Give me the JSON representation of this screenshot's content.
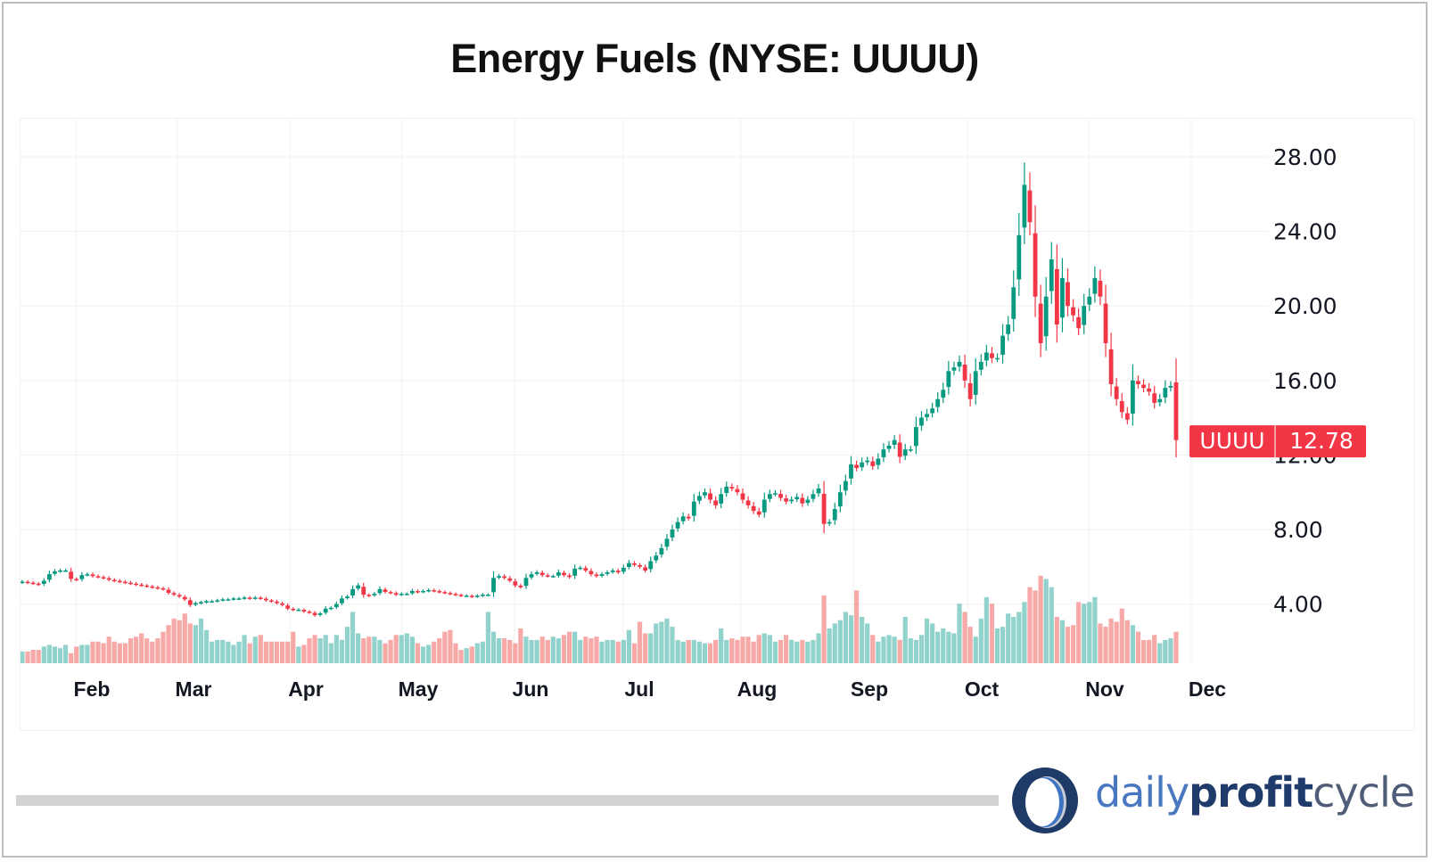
{
  "title": "Energy Fuels (NYSE: UUUU)",
  "price_tag": {
    "symbol": "UUUU",
    "value": "12.78",
    "color": "#f23645"
  },
  "logo": {
    "part1": "daily",
    "part2": "profit",
    "part3": "cycle"
  },
  "colors": {
    "up": "#089981",
    "down": "#f23645",
    "vol_up": "#92d2cc",
    "vol_down": "#f7a9a7",
    "grid": "#f0f0f0",
    "axis_text": "#131722"
  },
  "chart_data": {
    "type": "candlestick",
    "title": "Energy Fuels (NYSE: UUUU)",
    "xlabel": "",
    "ylabel": "",
    "ylim": [
      0,
      30
    ],
    "y_ticks": [
      "4.00",
      "8.00",
      "12.00",
      "16.00",
      "20.00",
      "24.00",
      "28.00"
    ],
    "x_ticks": [
      "Feb",
      "Mar",
      "Apr",
      "May",
      "Jun",
      "Jul",
      "Aug",
      "Sep",
      "Oct",
      "Nov",
      "Dec"
    ],
    "grid": true,
    "last_price": 12.78,
    "closes": [
      5.2,
      5.15,
      5.1,
      5.05,
      5.25,
      5.6,
      5.75,
      5.8,
      5.8,
      5.35,
      5.3,
      5.55,
      5.6,
      5.5,
      5.45,
      5.4,
      5.3,
      5.25,
      5.2,
      5.15,
      5.1,
      5.05,
      5.0,
      4.95,
      4.9,
      4.85,
      4.8,
      4.6,
      4.5,
      4.4,
      4.25,
      3.95,
      4.05,
      4.1,
      4.15,
      4.15,
      4.2,
      4.25,
      4.25,
      4.3,
      4.3,
      4.35,
      4.3,
      4.35,
      4.3,
      4.2,
      4.15,
      4.05,
      3.95,
      3.75,
      3.7,
      3.7,
      3.6,
      3.55,
      3.4,
      3.5,
      3.75,
      3.8,
      4.0,
      4.3,
      4.4,
      4.8,
      5.0,
      4.5,
      4.45,
      4.55,
      4.8,
      4.65,
      4.6,
      4.5,
      4.55,
      4.55,
      4.7,
      4.65,
      4.7,
      4.75,
      4.7,
      4.65,
      4.6,
      4.55,
      4.5,
      4.45,
      4.45,
      4.4,
      4.45,
      4.5,
      4.5,
      5.4,
      5.5,
      5.4,
      5.25,
      5.0,
      4.9,
      5.4,
      5.6,
      5.7,
      5.55,
      5.5,
      5.5,
      5.7,
      5.55,
      5.45,
      5.9,
      5.95,
      5.8,
      5.6,
      5.5,
      5.6,
      5.7,
      5.8,
      5.7,
      5.95,
      6.2,
      6.1,
      6.0,
      5.8,
      6.3,
      6.6,
      7.0,
      7.5,
      8.0,
      8.4,
      8.7,
      8.6,
      9.5,
      9.8,
      10.0,
      9.6,
      9.3,
      9.9,
      10.3,
      10.2,
      10.0,
      9.6,
      9.3,
      9.0,
      8.8,
      9.6,
      9.9,
      9.95,
      9.7,
      9.5,
      9.6,
      9.75,
      9.4,
      9.6,
      9.9,
      10.2,
      8.3,
      8.4,
      9.1,
      10.0,
      10.6,
      11.5,
      11.3,
      11.6,
      11.7,
      11.4,
      11.8,
      12.3,
      12.5,
      12.8,
      11.9,
      12.3,
      12.3,
      13.5,
      14.0,
      14.2,
      14.5,
      15.0,
      15.5,
      16.5,
      16.7,
      17.0,
      16.0,
      15.0,
      16.5,
      17.0,
      17.5,
      17.2,
      17.2,
      18.4,
      19.0,
      21.0,
      23.8,
      26.5,
      24.5,
      20.5,
      18.0,
      20.5,
      22.5,
      19.0,
      21.5,
      20.0,
      19.5,
      18.8,
      20.0,
      20.5,
      21.5,
      20.5,
      18.0,
      15.8,
      15.0,
      14.3,
      13.9,
      16.0,
      15.8,
      15.6,
      15.4,
      14.8,
      15.0,
      15.6,
      15.7,
      12.8
    ],
    "volumes": [
      1.9,
      1.9,
      2.0,
      2.0,
      2.2,
      2.3,
      2.2,
      2.1,
      2.3,
      1.8,
      2.2,
      2.3,
      2.3,
      2.5,
      2.5,
      2.4,
      2.8,
      2.5,
      2.4,
      2.4,
      2.7,
      2.8,
      3.0,
      2.7,
      2.5,
      2.7,
      3.1,
      3.5,
      3.9,
      3.8,
      4.2,
      3.6,
      3.5,
      3.9,
      3.2,
      2.5,
      2.6,
      2.6,
      2.5,
      2.3,
      2.5,
      2.9,
      2.4,
      2.8,
      2.9,
      2.5,
      2.5,
      2.5,
      2.5,
      2.5,
      3.1,
      2.2,
      2.3,
      2.7,
      2.9,
      2.7,
      2.9,
      2.4,
      2.9,
      2.6,
      3.4,
      4.3,
      3.0,
      2.7,
      2.8,
      2.8,
      2.6,
      2.4,
      2.6,
      2.9,
      2.9,
      3.0,
      2.8,
      2.4,
      2.2,
      2.3,
      2.5,
      2.7,
      3.1,
      3.2,
      2.4,
      2.0,
      2.1,
      2.2,
      2.4,
      2.5,
      4.3,
      3.1,
      2.7,
      2.7,
      2.6,
      2.4,
      3.3,
      2.8,
      2.6,
      2.6,
      2.8,
      2.6,
      2.8,
      2.7,
      2.9,
      3.1,
      3.1,
      2.6,
      2.8,
      2.7,
      2.8,
      2.5,
      2.6,
      2.6,
      2.5,
      2.6,
      3.2,
      2.4,
      3.7,
      3.0,
      3.0,
      3.6,
      3.7,
      3.9,
      3.4,
      2.6,
      2.5,
      2.6,
      2.6,
      2.5,
      2.4,
      2.4,
      2.6,
      3.3,
      2.6,
      2.7,
      2.6,
      2.8,
      2.8,
      2.5,
      2.9,
      3.0,
      2.9,
      2.5,
      2.6,
      2.9,
      2.6,
      2.5,
      2.6,
      2.5,
      2.6,
      3.0,
      5.3,
      3.3,
      3.6,
      3.8,
      4.3,
      4.1,
      5.6,
      4.0,
      3.6,
      2.9,
      2.5,
      2.8,
      2.9,
      2.8,
      2.6,
      4.0,
      2.7,
      2.6,
      2.9,
      3.9,
      3.6,
      3.1,
      3.3,
      3.1,
      3.0,
      4.8,
      4.3,
      3.4,
      2.8,
      3.9,
      5.2,
      4.8,
      3.3,
      3.4,
      4.2,
      4.0,
      4.3,
      4.9,
      5.8,
      5.6,
      6.5,
      6.3,
      5.8,
      4.0,
      3.8,
      3.4,
      3.5,
      4.9,
      4.8,
      4.9,
      5.2,
      3.6,
      3.4,
      3.9,
      3.7,
      4.5,
      3.8,
      3.5,
      3.1,
      2.6,
      2.6,
      2.9,
      2.4,
      2.6,
      2.7,
      3.1,
      2.9
    ]
  }
}
